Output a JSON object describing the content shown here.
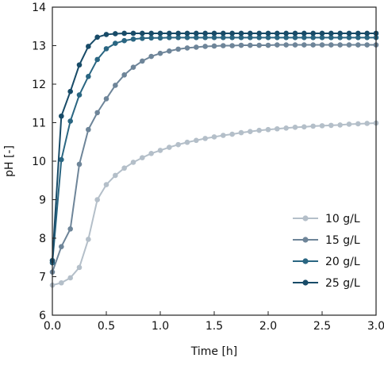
{
  "chart_data": {
    "type": "line",
    "xlabel": "Time [h]",
    "ylabel": "pH [-]",
    "xlim": [
      0,
      3.0
    ],
    "ylim": [
      6,
      14
    ],
    "xticks": [
      0.0,
      0.5,
      1.0,
      1.5,
      2.0,
      2.5,
      3.0
    ],
    "xtick_labels": [
      "0.0",
      "0.5",
      "1.0",
      "1.5",
      "2.0",
      "2.5",
      "3.0"
    ],
    "yticks": [
      6,
      7,
      8,
      9,
      10,
      11,
      12,
      13,
      14
    ],
    "ytick_labels": [
      "6",
      "7",
      "8",
      "9",
      "10",
      "11",
      "12",
      "13",
      "14"
    ],
    "grid": false,
    "legend_position": "bottom-right",
    "x": [
      0.0,
      0.0833,
      0.1667,
      0.25,
      0.3333,
      0.4167,
      0.5,
      0.5833,
      0.6667,
      0.75,
      0.8333,
      0.9167,
      1.0,
      1.0833,
      1.1667,
      1.25,
      1.3333,
      1.4167,
      1.5,
      1.5833,
      1.6667,
      1.75,
      1.8333,
      1.9167,
      2.0,
      2.0833,
      2.1667,
      2.25,
      2.3333,
      2.4167,
      2.5,
      2.5833,
      2.6667,
      2.75,
      2.8333,
      2.9167,
      3.0
    ],
    "series": [
      {
        "name": "10 g/L",
        "color": "#b4bfc9",
        "values": [
          6.78,
          6.84,
          6.97,
          7.24,
          7.97,
          9.0,
          9.39,
          9.63,
          9.82,
          9.97,
          10.09,
          10.2,
          10.28,
          10.36,
          10.43,
          10.49,
          10.54,
          10.59,
          10.63,
          10.67,
          10.7,
          10.74,
          10.77,
          10.8,
          10.82,
          10.84,
          10.86,
          10.88,
          10.89,
          10.91,
          10.92,
          10.93,
          10.94,
          10.96,
          10.97,
          10.98,
          10.99
        ]
      },
      {
        "name": "15 g/L",
        "color": "#6e8599",
        "values": [
          7.12,
          7.78,
          8.24,
          9.92,
          10.82,
          11.26,
          11.62,
          11.97,
          12.24,
          12.44,
          12.6,
          12.72,
          12.8,
          12.86,
          12.91,
          12.94,
          12.96,
          12.98,
          12.99,
          13.0,
          13.0,
          13.01,
          13.01,
          13.01,
          13.01,
          13.02,
          13.02,
          13.02,
          13.02,
          13.02,
          13.02,
          13.02,
          13.02,
          13.02,
          13.02,
          13.02,
          13.02
        ]
      },
      {
        "name": "20 g/L",
        "color": "#2a6682",
        "values": [
          7.36,
          10.04,
          11.04,
          11.72,
          12.2,
          12.64,
          12.92,
          13.06,
          13.13,
          13.17,
          13.19,
          13.2,
          13.2,
          13.21,
          13.21,
          13.21,
          13.21,
          13.21,
          13.21,
          13.21,
          13.21,
          13.21,
          13.21,
          13.21,
          13.21,
          13.21,
          13.21,
          13.21,
          13.21,
          13.21,
          13.21,
          13.21,
          13.21,
          13.21,
          13.21,
          13.21,
          13.21
        ]
      },
      {
        "name": "25 g/L",
        "color": "#184b68",
        "values": [
          7.42,
          11.17,
          11.81,
          12.5,
          12.98,
          13.22,
          13.29,
          13.31,
          13.32,
          13.32,
          13.32,
          13.32,
          13.32,
          13.32,
          13.32,
          13.32,
          13.32,
          13.32,
          13.32,
          13.32,
          13.32,
          13.32,
          13.32,
          13.32,
          13.32,
          13.32,
          13.32,
          13.32,
          13.32,
          13.32,
          13.32,
          13.32,
          13.32,
          13.32,
          13.32,
          13.32,
          13.32
        ]
      }
    ]
  }
}
